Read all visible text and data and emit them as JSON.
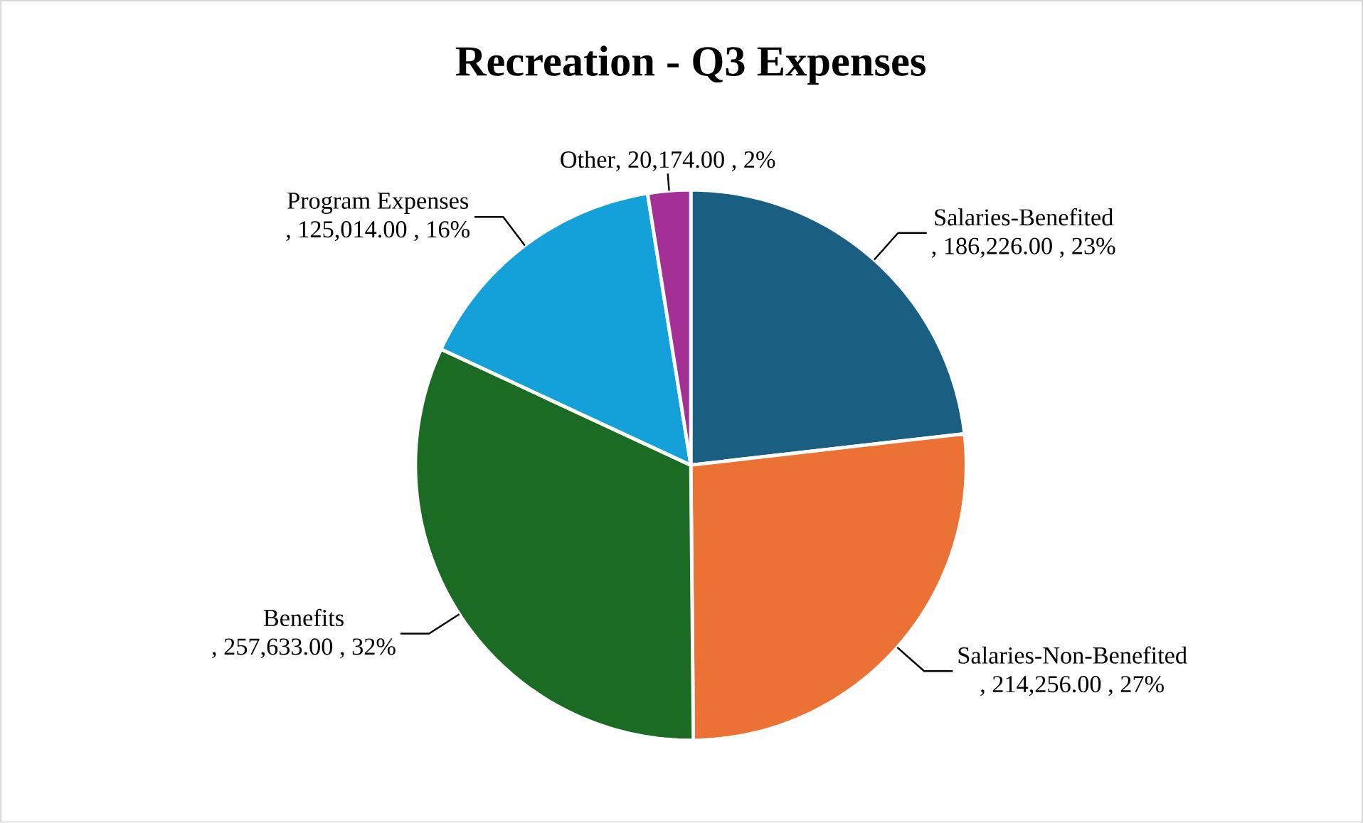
{
  "chart_data": {
    "type": "pie",
    "title": "Recreation - Q3 Expenses",
    "categories": [
      "Salaries-Benefited",
      "Salaries-Non-Benefited",
      "Benefits",
      "Program Expenses",
      "Other"
    ],
    "values": [
      186226.0,
      214256.0,
      257633.0,
      125014.0,
      20174.0
    ],
    "colors": [
      "#1a5f82",
      "#eb7234",
      "#1c6b24",
      "#14a0d9",
      "#a23095"
    ],
    "value_labels": [
      ", 186,226.00 , 23%",
      ", 214,256.00 , 27%",
      ", 257,633.00 , 32%",
      ", 125,014.00 , 16%",
      ", 20,174.00 , 2%"
    ]
  }
}
